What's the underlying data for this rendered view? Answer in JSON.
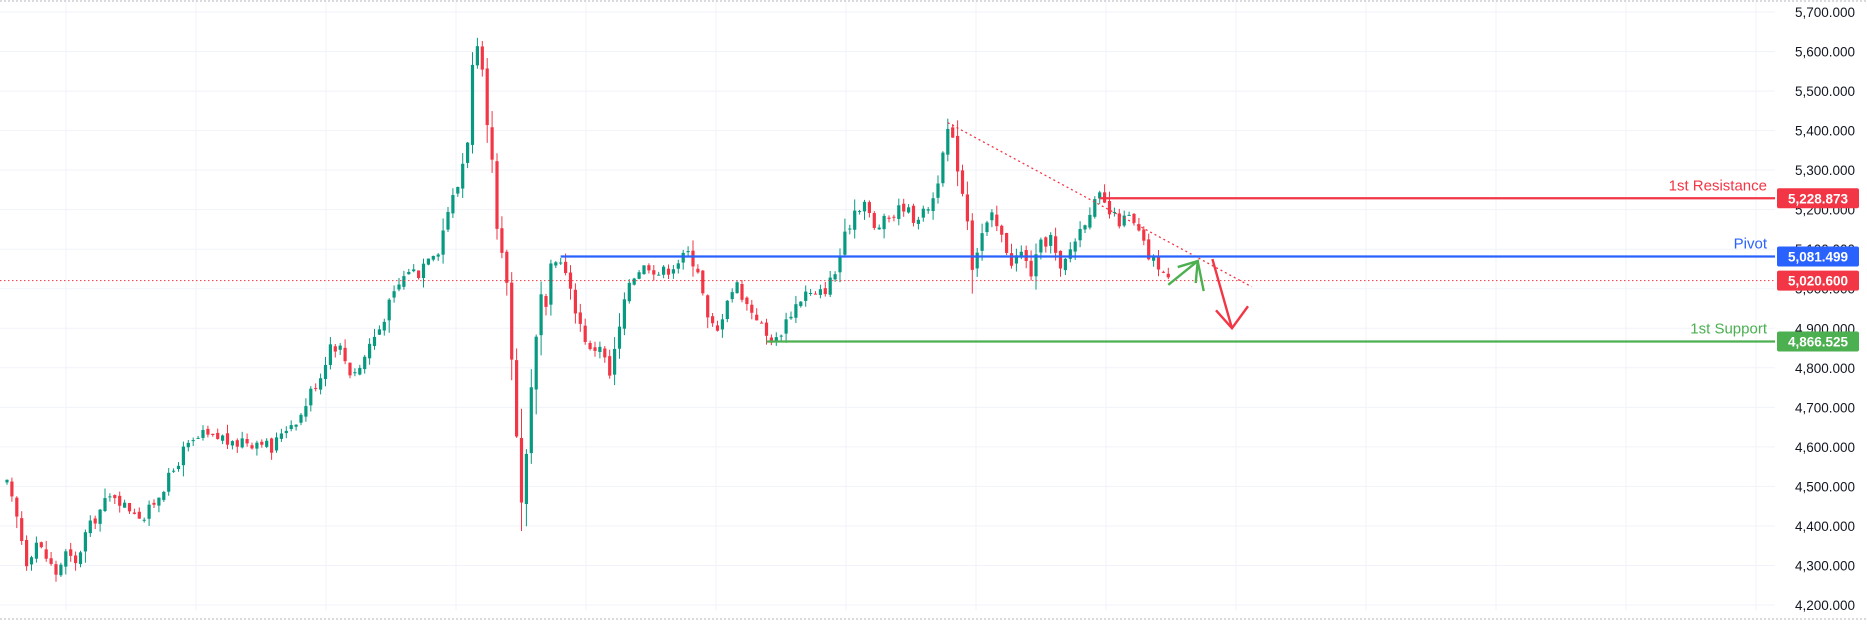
{
  "colors": {
    "up": "#089981",
    "down": "#f23645",
    "grid": "#f0f3fa",
    "axis_text": "#131722",
    "resistance": "#f23645",
    "pivot": "#2962ff",
    "support": "#4caf50",
    "current_price": "#f23645",
    "trendline": "#f23645",
    "arrow_up": "#4caf50",
    "arrow_down": "#f23645"
  },
  "chart_data": {
    "type": "candlestick",
    "ylim": [
      4200,
      5700
    ],
    "y_ticks": [
      "5,700.000",
      "5,600.000",
      "5,500.000",
      "5,400.000",
      "5,300.000",
      "5,200.000",
      "5,100.000",
      "5,000.000",
      "4,900.000",
      "4,800.000",
      "4,700.000",
      "4,600.000",
      "4,500.000",
      "4,400.000",
      "4,300.000",
      "4,200.000"
    ],
    "y_tick_values": [
      5700,
      5600,
      5500,
      5400,
      5300,
      5200,
      5100,
      5000,
      4900,
      4800,
      4700,
      4600,
      4500,
      4400,
      4300,
      4200
    ],
    "grid": true,
    "close_path": [
      [
        0,
        4505
      ],
      [
        2,
        4420
      ],
      [
        4,
        4310
      ],
      [
        6,
        4360
      ],
      [
        8,
        4320
      ],
      [
        10,
        4280
      ],
      [
        12,
        4330
      ],
      [
        14,
        4300
      ],
      [
        16,
        4380
      ],
      [
        18,
        4420
      ],
      [
        20,
        4460
      ],
      [
        22,
        4480
      ],
      [
        24,
        4450
      ],
      [
        26,
        4440
      ],
      [
        28,
        4420
      ],
      [
        30,
        4460
      ],
      [
        32,
        4500
      ],
      [
        34,
        4540
      ],
      [
        36,
        4590
      ],
      [
        38,
        4610
      ],
      [
        40,
        4630
      ],
      [
        42,
        4620
      ],
      [
        44,
        4625
      ],
      [
        46,
        4600
      ],
      [
        48,
        4620
      ],
      [
        50,
        4610
      ],
      [
        52,
        4620
      ],
      [
        54,
        4590
      ],
      [
        56,
        4640
      ],
      [
        58,
        4660
      ],
      [
        60,
        4680
      ],
      [
        62,
        4740
      ],
      [
        64,
        4780
      ],
      [
        66,
        4860
      ],
      [
        68,
        4850
      ],
      [
        70,
        4790
      ],
      [
        72,
        4800
      ],
      [
        74,
        4860
      ],
      [
        76,
        4900
      ],
      [
        78,
        4960
      ],
      [
        80,
        5010
      ],
      [
        82,
        5050
      ],
      [
        84,
        5040
      ],
      [
        86,
        5090
      ],
      [
        88,
        5100
      ],
      [
        90,
        5200
      ],
      [
        92,
        5260
      ],
      [
        94,
        5380
      ],
      [
        95,
        5560
      ],
      [
        96,
        5600
      ],
      [
        97,
        5540
      ],
      [
        98,
        5400
      ],
      [
        99,
        5320
      ],
      [
        100,
        5140
      ],
      [
        102,
        5020
      ],
      [
        103,
        4820
      ],
      [
        104,
        4640
      ],
      [
        105,
        4460
      ],
      [
        106,
        4580
      ],
      [
        107,
        4760
      ],
      [
        108,
        4870
      ],
      [
        109,
        4980
      ],
      [
        110,
        4940
      ],
      [
        111,
        5050
      ],
      [
        113,
        5080
      ],
      [
        115,
        4990
      ],
      [
        117,
        4910
      ],
      [
        119,
        4840
      ],
      [
        121,
        4860
      ],
      [
        123,
        4780
      ],
      [
        125,
        4900
      ],
      [
        127,
        5020
      ],
      [
        129,
        5050
      ],
      [
        131,
        5060
      ],
      [
        133,
        5040
      ],
      [
        135,
        5050
      ],
      [
        137,
        5070
      ],
      [
        139,
        5090
      ],
      [
        141,
        5050
      ],
      [
        143,
        4920
      ],
      [
        145,
        4890
      ],
      [
        147,
        4980
      ],
      [
        149,
        5010
      ],
      [
        151,
        4960
      ],
      [
        153,
        4930
      ],
      [
        155,
        4880
      ],
      [
        157,
        4870
      ],
      [
        159,
        4920
      ],
      [
        161,
        4960
      ],
      [
        163,
        4990
      ],
      [
        165,
        4980
      ],
      [
        167,
        5000
      ],
      [
        169,
        5040
      ],
      [
        171,
        5130
      ],
      [
        173,
        5200
      ],
      [
        175,
        5220
      ],
      [
        177,
        5150
      ],
      [
        179,
        5170
      ],
      [
        181,
        5190
      ],
      [
        183,
        5210
      ],
      [
        185,
        5180
      ],
      [
        187,
        5190
      ],
      [
        189,
        5230
      ],
      [
        191,
        5330
      ],
      [
        192,
        5400
      ],
      [
        193,
        5370
      ],
      [
        194,
        5310
      ],
      [
        196,
        5180
      ],
      [
        197,
        5060
      ],
      [
        199,
        5140
      ],
      [
        201,
        5180
      ],
      [
        203,
        5130
      ],
      [
        205,
        5070
      ],
      [
        207,
        5090
      ],
      [
        209,
        5040
      ],
      [
        211,
        5110
      ],
      [
        213,
        5130
      ],
      [
        215,
        5040
      ],
      [
        217,
        5100
      ],
      [
        219,
        5150
      ],
      [
        221,
        5200
      ],
      [
        223,
        5230
      ],
      [
        225,
        5190
      ],
      [
        227,
        5170
      ],
      [
        229,
        5180
      ],
      [
        231,
        5140
      ],
      [
        233,
        5080
      ],
      [
        235,
        5060
      ],
      [
        237,
        5020
      ]
    ],
    "trendline": {
      "start": {
        "x": 192,
        "y": 5420
      },
      "end": {
        "x": 254,
        "y": 5005
      }
    },
    "levels": [
      {
        "name": "1st Resistance",
        "price_label": "5,228.873",
        "value": 5228.873,
        "x_start": 223
      },
      {
        "name": "Pivot",
        "price_label": "5,081.499",
        "value": 5081.499,
        "x_start": 113
      },
      {
        "name": "1st Support",
        "price_label": "4,866.525",
        "value": 4866.525,
        "x_start": 155
      }
    ],
    "current_price": {
      "label": "5,020.600",
      "value": 5020.6
    },
    "projection": {
      "up_arrow": {
        "x": [
          237,
          243
        ],
        "y": [
          5010,
          5070
        ]
      },
      "down_arrow": {
        "x": [
          246,
          250
        ],
        "y": [
          5075,
          4900
        ]
      }
    }
  }
}
